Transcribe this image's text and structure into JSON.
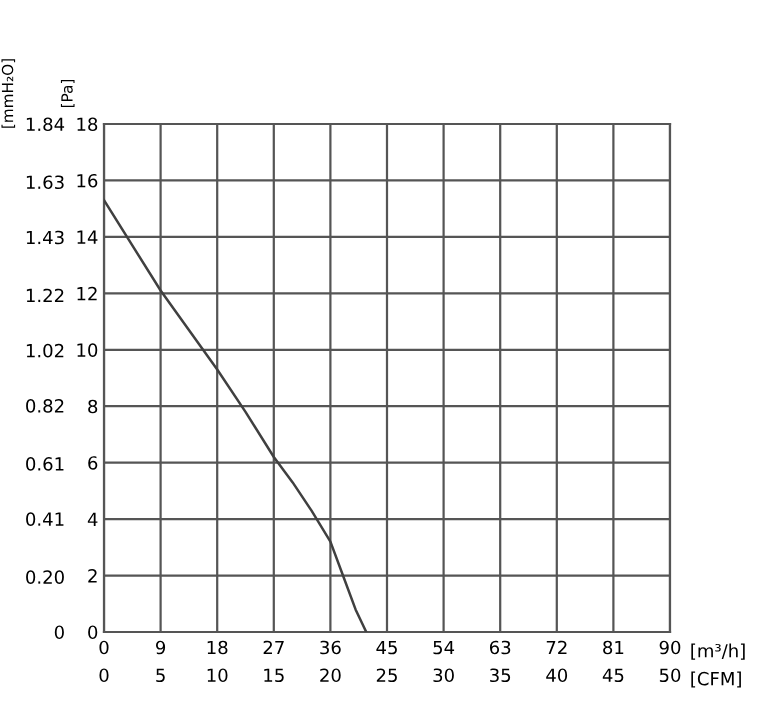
{
  "chart_data": {
    "type": "line",
    "x": [
      0,
      4.5,
      9,
      13.5,
      18,
      22.5,
      27,
      30,
      33,
      36,
      38,
      40,
      41.7
    ],
    "series": [
      {
        "color": "#404040",
        "values": [
          15.3,
          13.7,
          12.1,
          10.7,
          9.3,
          7.8,
          6.2,
          5.3,
          4.3,
          3.2,
          2.0,
          0.8,
          0
        ]
      }
    ],
    "xlabel": "[m³/h]",
    "x2label": "[CFM]",
    "ylabel": "[Pa]",
    "y2label": "[mmH₂O]",
    "xlim": [
      0,
      90
    ],
    "xticks": [
      0,
      9,
      18,
      27,
      36,
      45,
      54,
      63,
      72,
      81,
      90
    ],
    "x2lim": [
      0,
      50
    ],
    "x2ticks": [
      0,
      5,
      10,
      15,
      20,
      25,
      30,
      35,
      40,
      45,
      50
    ],
    "ylim": [
      0,
      18
    ],
    "yticks": [
      0,
      2,
      4,
      6,
      8,
      10,
      12,
      14,
      16,
      18
    ],
    "y2lim": [
      0,
      1.84
    ],
    "y2ticks": [
      0,
      {
        "value": 0.2,
        "label": "0.20"
      },
      0.41,
      0.61,
      0.82,
      1.02,
      1.22,
      1.43,
      1.63,
      1.84
    ],
    "grid": true,
    "marker": "none",
    "line_style": "solid"
  }
}
